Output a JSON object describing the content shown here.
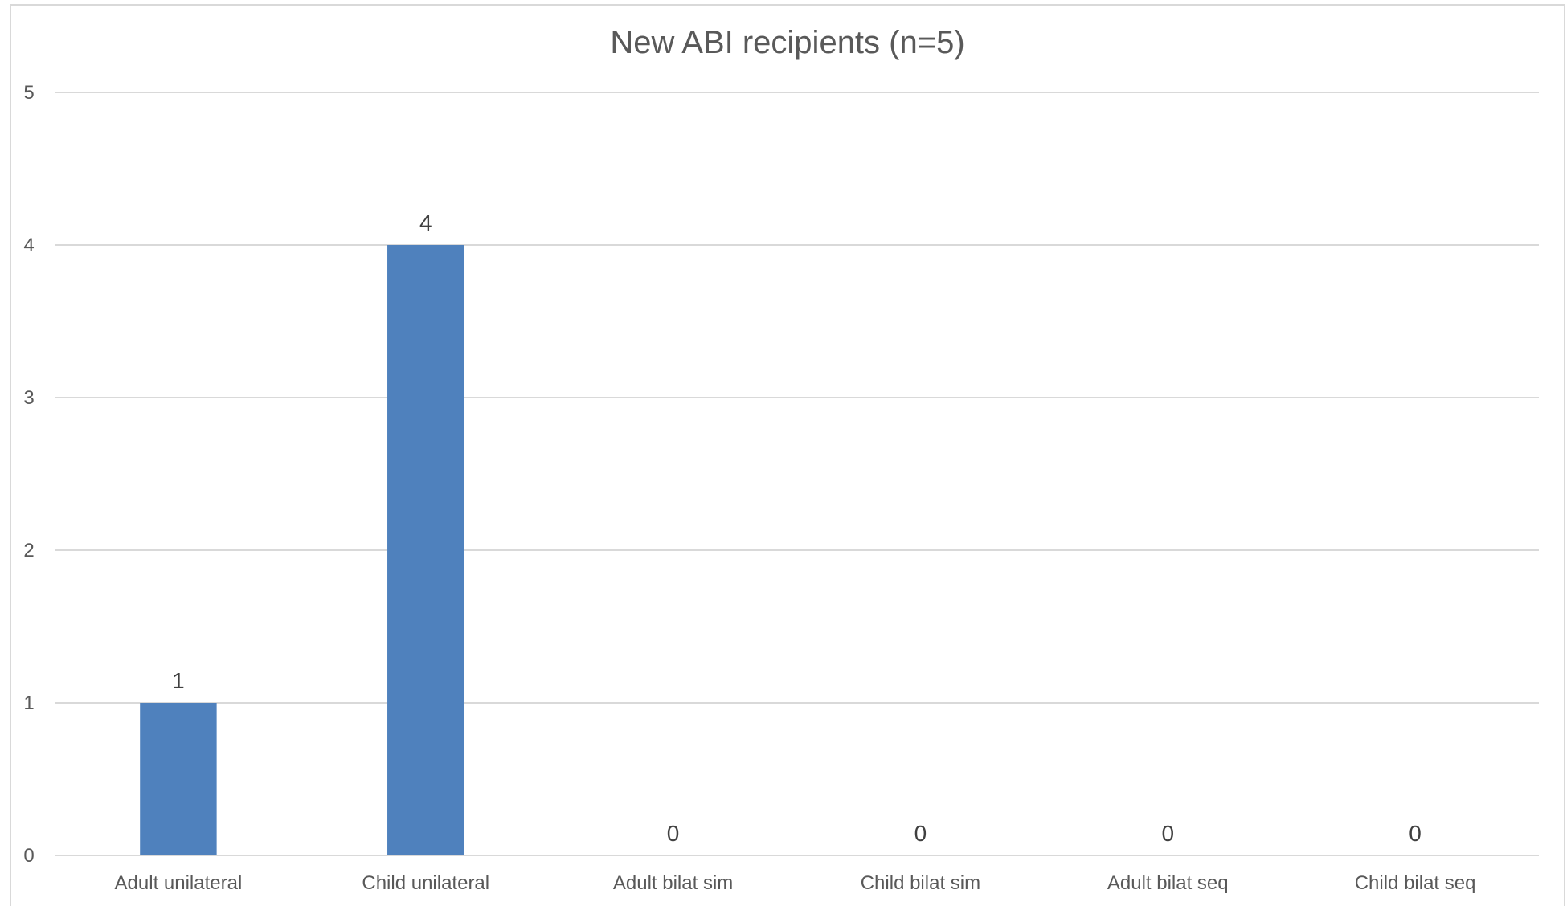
{
  "chart_data": {
    "type": "bar",
    "title": "New ABI recipients (n=5)",
    "categories": [
      "Adult unilateral",
      "Child unilateral",
      "Adult bilat sim",
      "Child bilat sim",
      "Adult bilat seq",
      "Child bilat seq"
    ],
    "values": [
      1,
      4,
      0,
      0,
      0,
      0
    ],
    "data_labels": [
      "1",
      "4",
      "0",
      "0",
      "0",
      "0"
    ],
    "ylim": [
      0,
      5
    ],
    "yticks": [
      "0",
      "1",
      "2",
      "3",
      "4",
      "5"
    ],
    "xlabel": "",
    "ylabel": "",
    "grid": true,
    "legend": "none",
    "colors": {
      "bar": "#4f81bd",
      "grid": "#d9d9d9",
      "frame": "#d9d9d9",
      "text": "#595959"
    }
  }
}
